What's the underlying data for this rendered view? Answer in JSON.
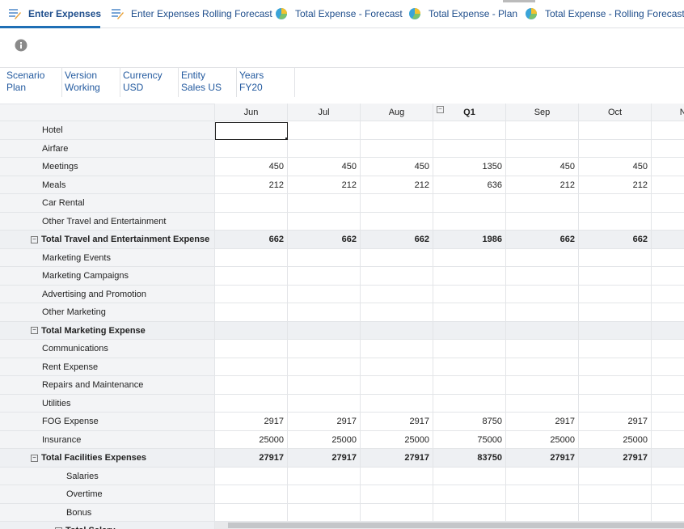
{
  "tabs": [
    {
      "label": "Enter Expenses"
    },
    {
      "label": "Enter Expenses Rolling Forecast"
    },
    {
      "label": "Total Expense - Forecast"
    },
    {
      "label": "Total Expense - Plan"
    },
    {
      "label": "Total Expense - Rolling Forecast"
    }
  ],
  "pov": [
    {
      "dimension": "Scenario",
      "member": "Plan"
    },
    {
      "dimension": "Version",
      "member": "Working"
    },
    {
      "dimension": "Currency",
      "member": "USD"
    },
    {
      "dimension": "Entity",
      "member": "Sales US"
    },
    {
      "dimension": "Years",
      "member": "FY20"
    }
  ],
  "grid": {
    "columns": [
      "Jun",
      "Jul",
      "Aug",
      "Q1",
      "Sep",
      "Oct",
      "Nov"
    ],
    "rows": [
      {
        "label": "Hotel",
        "level": 1,
        "total": false,
        "values": [
          null,
          null,
          null,
          null,
          null,
          null,
          null
        ]
      },
      {
        "label": "Airfare",
        "level": 1,
        "total": false,
        "values": [
          null,
          null,
          null,
          null,
          null,
          null,
          null
        ]
      },
      {
        "label": "Meetings",
        "level": 1,
        "total": false,
        "values": [
          450,
          450,
          450,
          1350,
          450,
          450,
          null
        ]
      },
      {
        "label": "Meals",
        "level": 1,
        "total": false,
        "values": [
          212,
          212,
          212,
          636,
          212,
          212,
          null
        ]
      },
      {
        "label": "Car Rental",
        "level": 1,
        "total": false,
        "values": [
          null,
          null,
          null,
          null,
          null,
          null,
          null
        ]
      },
      {
        "label": "Other Travel and Entertainment",
        "level": 1,
        "total": false,
        "values": [
          null,
          null,
          null,
          null,
          null,
          null,
          null
        ]
      },
      {
        "label": "Total Travel and Entertainment Expense",
        "level": 1,
        "total": true,
        "values": [
          662,
          662,
          662,
          1986,
          662,
          662,
          null
        ]
      },
      {
        "label": "Marketing Events",
        "level": 1,
        "total": false,
        "values": [
          null,
          null,
          null,
          null,
          null,
          null,
          null
        ]
      },
      {
        "label": "Marketing Campaigns",
        "level": 1,
        "total": false,
        "values": [
          null,
          null,
          null,
          null,
          null,
          null,
          null
        ]
      },
      {
        "label": "Advertising and Promotion",
        "level": 1,
        "total": false,
        "values": [
          null,
          null,
          null,
          null,
          null,
          null,
          null
        ]
      },
      {
        "label": "Other Marketing",
        "level": 1,
        "total": false,
        "values": [
          null,
          null,
          null,
          null,
          null,
          null,
          null
        ]
      },
      {
        "label": "Total Marketing Expense",
        "level": 1,
        "total": true,
        "values": [
          null,
          null,
          null,
          null,
          null,
          null,
          null
        ]
      },
      {
        "label": "Communications",
        "level": 1,
        "total": false,
        "values": [
          null,
          null,
          null,
          null,
          null,
          null,
          null
        ]
      },
      {
        "label": "Rent Expense",
        "level": 1,
        "total": false,
        "values": [
          null,
          null,
          null,
          null,
          null,
          null,
          null
        ]
      },
      {
        "label": "Repairs and Maintenance",
        "level": 1,
        "total": false,
        "values": [
          null,
          null,
          null,
          null,
          null,
          null,
          null
        ]
      },
      {
        "label": "Utilities",
        "level": 1,
        "total": false,
        "values": [
          null,
          null,
          null,
          null,
          null,
          null,
          null
        ]
      },
      {
        "label": "FOG Expense",
        "level": 1,
        "total": false,
        "values": [
          2917,
          2917,
          2917,
          8750,
          2917,
          2917,
          null
        ]
      },
      {
        "label": "Insurance",
        "level": 1,
        "total": false,
        "values": [
          25000,
          25000,
          25000,
          75000,
          25000,
          25000,
          null
        ]
      },
      {
        "label": "Total Facilities Expenses",
        "level": 1,
        "total": true,
        "values": [
          27917,
          27917,
          27917,
          83750,
          27917,
          27917,
          null
        ]
      },
      {
        "label": "Salaries",
        "level": 2,
        "total": false,
        "values": [
          null,
          null,
          null,
          null,
          null,
          null,
          null
        ]
      },
      {
        "label": "Overtime",
        "level": 2,
        "total": false,
        "values": [
          null,
          null,
          null,
          null,
          null,
          null,
          null
        ]
      },
      {
        "label": "Bonus",
        "level": 2,
        "total": false,
        "values": [
          null,
          null,
          null,
          null,
          null,
          null,
          null
        ]
      },
      {
        "label": "Total Salary",
        "level": 2,
        "total": true,
        "values": [
          null,
          null,
          null,
          null,
          null,
          null,
          null
        ]
      }
    ]
  }
}
